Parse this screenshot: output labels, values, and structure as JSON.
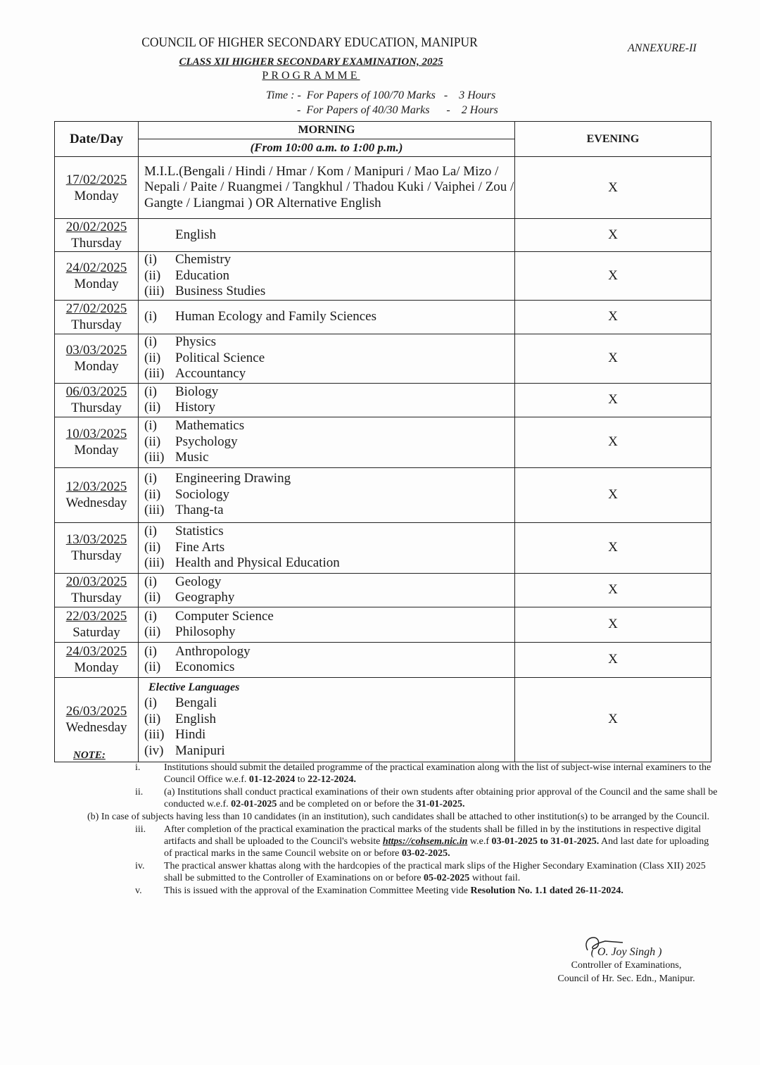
{
  "header": {
    "council": "COUNCIL OF HIGHER SECONDARY EDUCATION, MANIPUR",
    "annexure": "ANNEXURE-II",
    "exam": "CLASS XII HIGHER SECONDARY EXAMINATION, 2025",
    "programme": "PROGRAMME",
    "time1": "Time : -  For Papers of 100/70 Marks   -    3 Hours",
    "time2": "-  For Papers of 40/30 Marks      -    2 Hours"
  },
  "table": {
    "col_date": "Date/Day",
    "col_morning": "MORNING",
    "morning_time": "(From 10:00 a.m. to 1:00 p.m.)",
    "col_evening": "EVENING",
    "rows": [
      {
        "date": "17/02/2025",
        "day": "Monday",
        "text": "M.I.L.(Bengali / Hindi / Hmar / Kom / Manipuri / Mao La/ Mizo / Nepali / Paite / Ruangmei / Tangkhul  / Thadou Kuki / Vaiphei / Zou / Gangte / Liangmai ) OR  Alternative English",
        "evening": "X"
      },
      {
        "date": "20/02/2025",
        "day": "Thursday",
        "subjects": [
          [
            "",
            "English"
          ]
        ],
        "evening": "X"
      },
      {
        "date": "24/02/2025",
        "day": "Monday",
        "subjects": [
          [
            "(i)",
            "Chemistry"
          ],
          [
            "(ii)",
            "Education"
          ],
          [
            "(iii)",
            "Business Studies"
          ]
        ],
        "evening": "X"
      },
      {
        "date": "27/02/2025",
        "day": "Thursday",
        "subjects": [
          [
            "(i)",
            "Human Ecology and Family Sciences"
          ]
        ],
        "evening": "X"
      },
      {
        "date": "03/03/2025",
        "day": "Monday",
        "subjects": [
          [
            "(i)",
            "Physics"
          ],
          [
            "(ii)",
            "Political Science"
          ],
          [
            "(iii)",
            "Accountancy"
          ]
        ],
        "evening": "X"
      },
      {
        "date": "06/03/2025",
        "day": "Thursday",
        "subjects": [
          [
            "(i)",
            "Biology"
          ],
          [
            "(ii)",
            "History"
          ]
        ],
        "evening": "X"
      },
      {
        "date": "10/03/2025",
        "day": "Monday",
        "subjects": [
          [
            "(i)",
            "Mathematics"
          ],
          [
            "(ii)",
            "Psychology"
          ],
          [
            "(iii)",
            "Music"
          ]
        ],
        "evening": "X"
      },
      {
        "date": "12/03/2025",
        "day": "Wednesday",
        "subjects": [
          [
            "(i)",
            "Engineering Drawing"
          ],
          [
            "(ii)",
            "Sociology"
          ],
          [
            "(iii)",
            "Thang-ta"
          ]
        ],
        "evening": "X"
      },
      {
        "date": "13/03/2025",
        "day": "Thursday",
        "subjects": [
          [
            "(i)",
            "Statistics"
          ],
          [
            "(ii)",
            "Fine Arts"
          ],
          [
            "(iii)",
            "Health  and Physical Education"
          ]
        ],
        "evening": "X"
      },
      {
        "date": "20/03/2025",
        "day": "Thursday",
        "subjects": [
          [
            "(i)",
            "Geology"
          ],
          [
            "(ii)",
            "Geography"
          ]
        ],
        "evening": "X"
      },
      {
        "date": "22/03/2025",
        "day": "Saturday",
        "subjects": [
          [
            "(i)",
            "Computer Science"
          ],
          [
            "(ii)",
            "Philosophy"
          ]
        ],
        "evening": "X"
      },
      {
        "date": "24/03/2025",
        "day": "Monday",
        "subjects": [
          [
            "(i)",
            "Anthropology"
          ],
          [
            "(ii)",
            "Economics"
          ]
        ],
        "evening": "X"
      },
      {
        "date": "26/03/2025",
        "day": "Wednesday",
        "heading": "Elective Languages",
        "subjects": [
          [
            "(i)",
            "Bengali"
          ],
          [
            "(ii)",
            "English"
          ],
          [
            "(iii)",
            "Hindi"
          ],
          [
            "(iv)",
            "Manipuri"
          ]
        ],
        "evening": "X"
      }
    ]
  },
  "notes": {
    "label": "NOTE:",
    "items": [
      {
        "n": "i.",
        "parts": [
          [
            "Institutions should submit the detailed programme of the practical examination along with the list of subject-wise internal examiners to the Council Office w.e.f. ",
            0
          ],
          [
            "01-12-2024",
            1
          ],
          [
            " to ",
            0
          ],
          [
            "22-12-2024.",
            1
          ]
        ]
      },
      {
        "n": "ii.",
        "parts": [
          [
            "(a) Institutions shall conduct practical examinations of their own students after obtaining prior approval of the Council and the same shall be conducted w.e.f. ",
            0
          ],
          [
            "02-01-2025",
            1
          ],
          [
            " and be completed on or before the ",
            0
          ],
          [
            "31-01-2025.",
            1
          ]
        ]
      },
      {
        "n": "",
        "sub": true,
        "parts": [
          [
            "(b) In case of subjects having less than 10 candidates (in an institution), such candidates shall be attached to other institution(s) to be arranged by the Council.",
            0
          ]
        ]
      },
      {
        "n": "iii.",
        "parts": [
          [
            "After completion of the practical examination the practical marks of the students shall be filled in by the institutions in respective digital artifacts and shall be uploaded to the Council's website ",
            0
          ],
          [
            "https://cohsem.nic.in",
            2
          ],
          [
            " w.e.f ",
            0
          ],
          [
            "03-01-2025 to 31-01-2025.",
            1
          ],
          [
            " And last date for uploading of practical marks in the same Council website on or before ",
            0
          ],
          [
            "03-02-2025.",
            1
          ]
        ]
      },
      {
        "n": "iv.",
        "parts": [
          [
            "The practical answer khattas along with the hardcopies of the practical mark slips of the Higher Secondary Examination (Class XII) 2025 shall be submitted to the Controller of Examinations on or before ",
            0
          ],
          [
            "05-02-2025",
            1
          ],
          [
            " without fail.",
            0
          ]
        ]
      },
      {
        "n": "v.",
        "parts": [
          [
            "This is issued with the approval of the Examination Committee Meeting vide ",
            0
          ],
          [
            "Resolution No. 1.1 dated 26-11-2024.",
            1
          ]
        ]
      }
    ]
  },
  "signature": {
    "name": "( O. Joy Singh )",
    "title": "Controller of Examinations,",
    "office": "Council of Hr. Sec. Edn., Manipur."
  }
}
